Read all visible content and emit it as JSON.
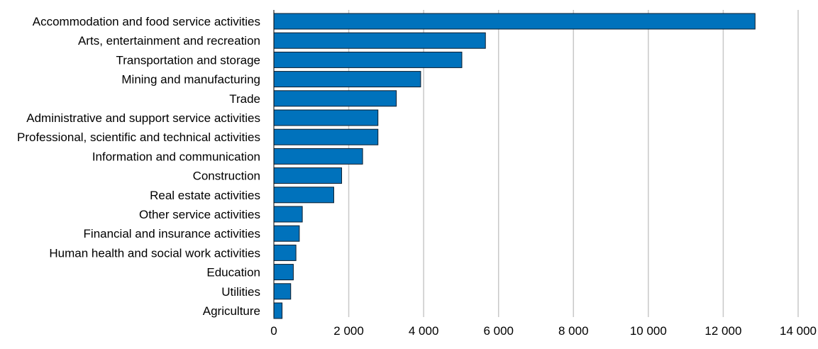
{
  "chart_data": {
    "type": "bar",
    "orientation": "horizontal",
    "title": "",
    "xlabel": "",
    "ylabel": "",
    "xlim": [
      0,
      14000
    ],
    "grid": true,
    "legend": "none",
    "categories": [
      "Accommodation and food service activities",
      "Arts, entertainment and recreation",
      "Transportation and storage",
      "Mining and manufacturing",
      "Trade",
      "Administrative and support service activities",
      "Professional, scientific and technical activities",
      "Information and communication",
      "Construction",
      "Real estate activities",
      "Other service activities",
      "Financial and insurance activities",
      "Human health and social work activities",
      "Education",
      "Utilities",
      "Agriculture"
    ],
    "values": [
      12850,
      5650,
      5020,
      3920,
      3270,
      2780,
      2780,
      2370,
      1810,
      1600,
      760,
      680,
      590,
      520,
      450,
      220
    ],
    "x_tick_values": [
      0,
      2000,
      4000,
      6000,
      8000,
      10000,
      12000,
      14000
    ],
    "x_tick_labels": [
      "0",
      "2 000",
      "4 000",
      "6 000",
      "8 000",
      "10 000",
      "12 000",
      "14 000"
    ],
    "colors": {
      "bar_fill": "#0072bc",
      "bar_stroke": "#0b1c2c",
      "grid": "#c8c8c8",
      "axis": "#000000"
    }
  }
}
